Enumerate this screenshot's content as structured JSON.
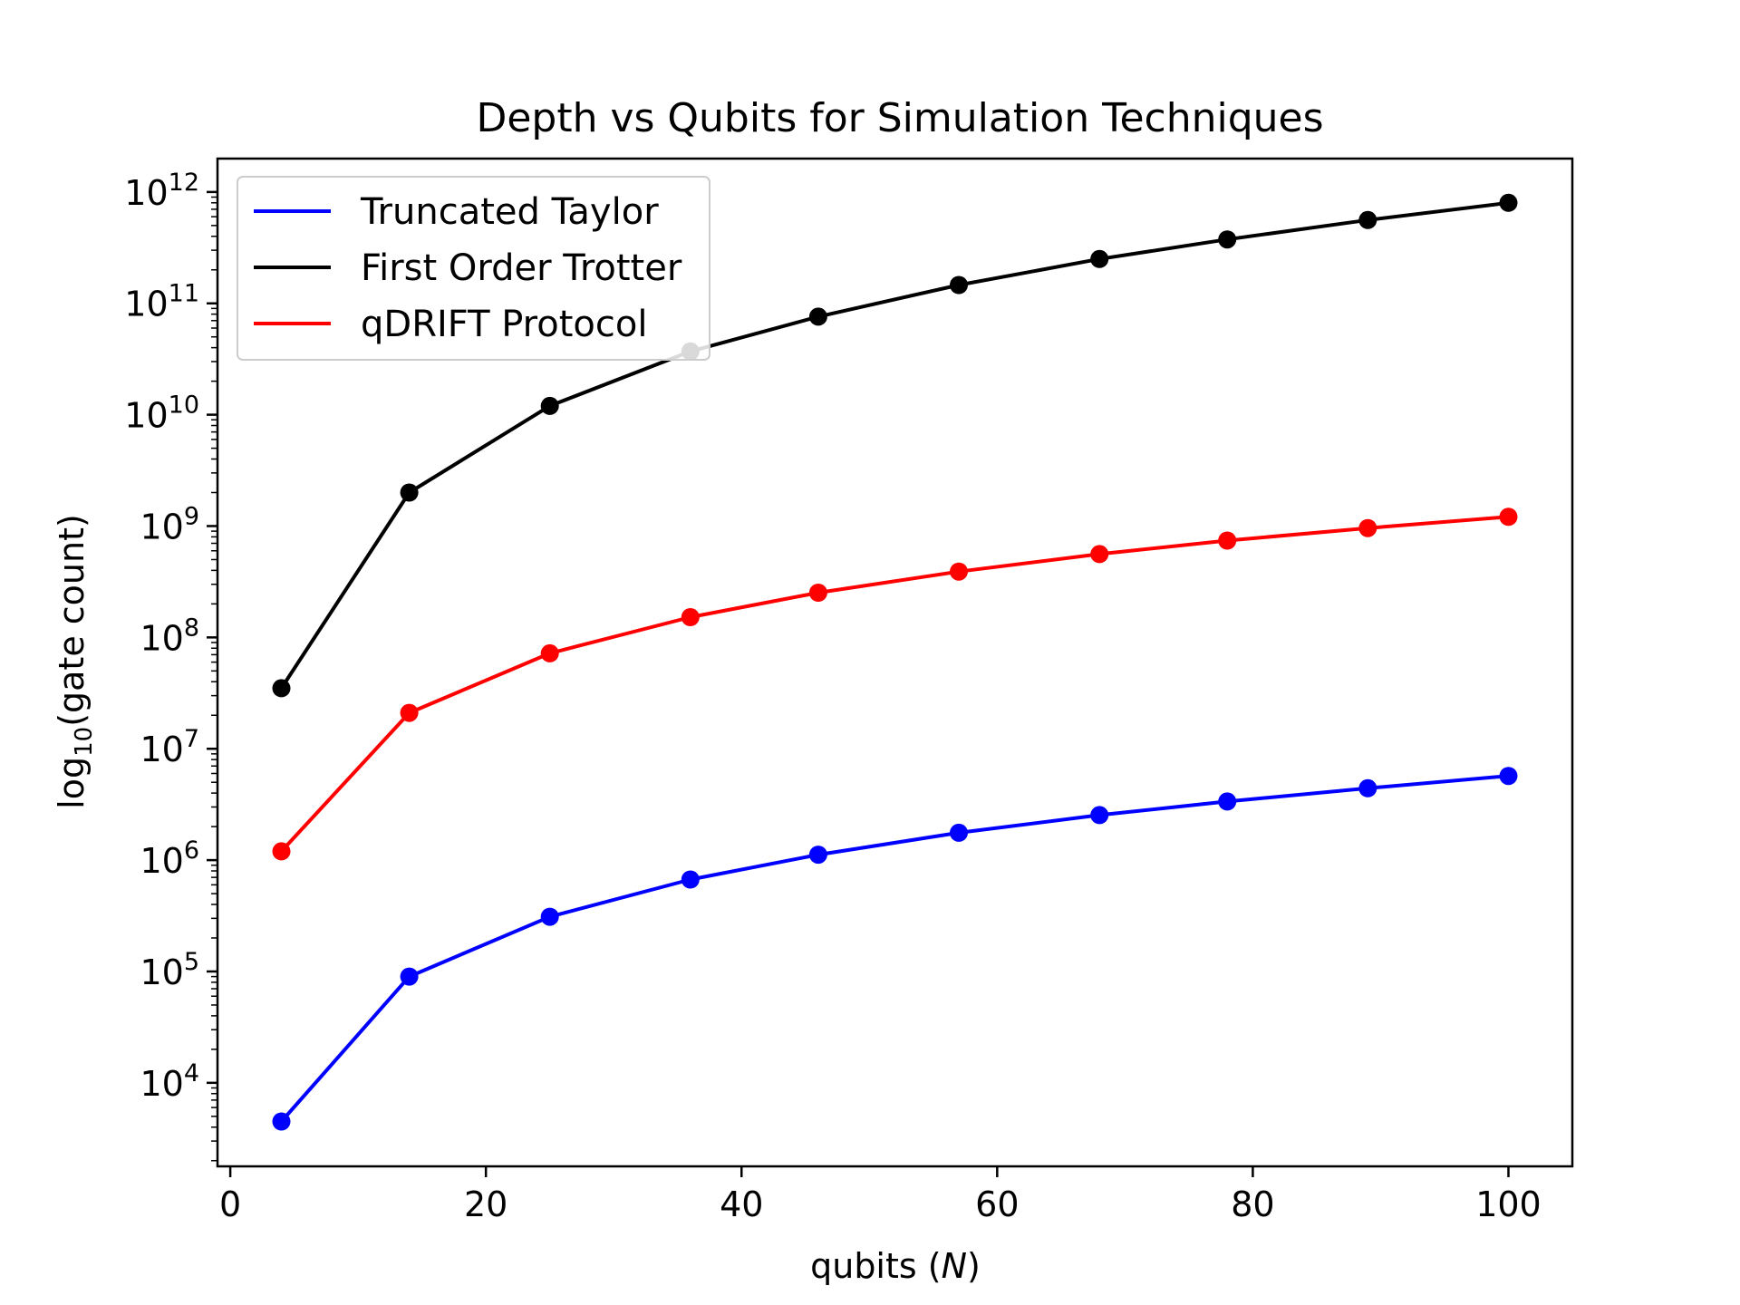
{
  "chart_data": {
    "type": "line",
    "title": "Depth vs Qubits for Simulation Techniques",
    "xlabel_prefix": "qubits (",
    "xlabel_var": "N",
    "xlabel_suffix": ")",
    "ylabel_prefix": "log",
    "ylabel_sub": "10",
    "ylabel_suffix": "(gate count)",
    "xlim": [
      -1,
      105
    ],
    "ylim_log10": [
      3.25,
      12.3
    ],
    "yscale": "log",
    "grid": false,
    "legend_position": "upper-left",
    "x_ticks": [
      0,
      20,
      40,
      60,
      80,
      100
    ],
    "y_tick_exponents": [
      4,
      5,
      6,
      7,
      8,
      9,
      10,
      11,
      12
    ],
    "y_tick_base": "10",
    "x": [
      4,
      14,
      25,
      36,
      46,
      57,
      68,
      78,
      89,
      100
    ],
    "series": [
      {
        "name": "Truncated Taylor",
        "color": "#0000ff",
        "values": [
          4500,
          90000,
          310000,
          670000,
          1120000,
          1760000,
          2540000,
          3360000,
          4420000,
          5700000
        ]
      },
      {
        "name": "First Order Trotter",
        "color": "#000000",
        "values": [
          35000000,
          2000000000,
          12000000000,
          37000000000,
          76000000000,
          146000000000,
          250000000000,
          375000000000,
          560000000000,
          800000000000
        ]
      },
      {
        "name": "qDRIFT Protocol",
        "color": "#ff0000",
        "values": [
          1200000,
          21000000,
          72000000,
          152000000,
          252000000,
          390000000,
          560000000,
          740000000,
          960000000,
          1210000000
        ]
      }
    ]
  }
}
